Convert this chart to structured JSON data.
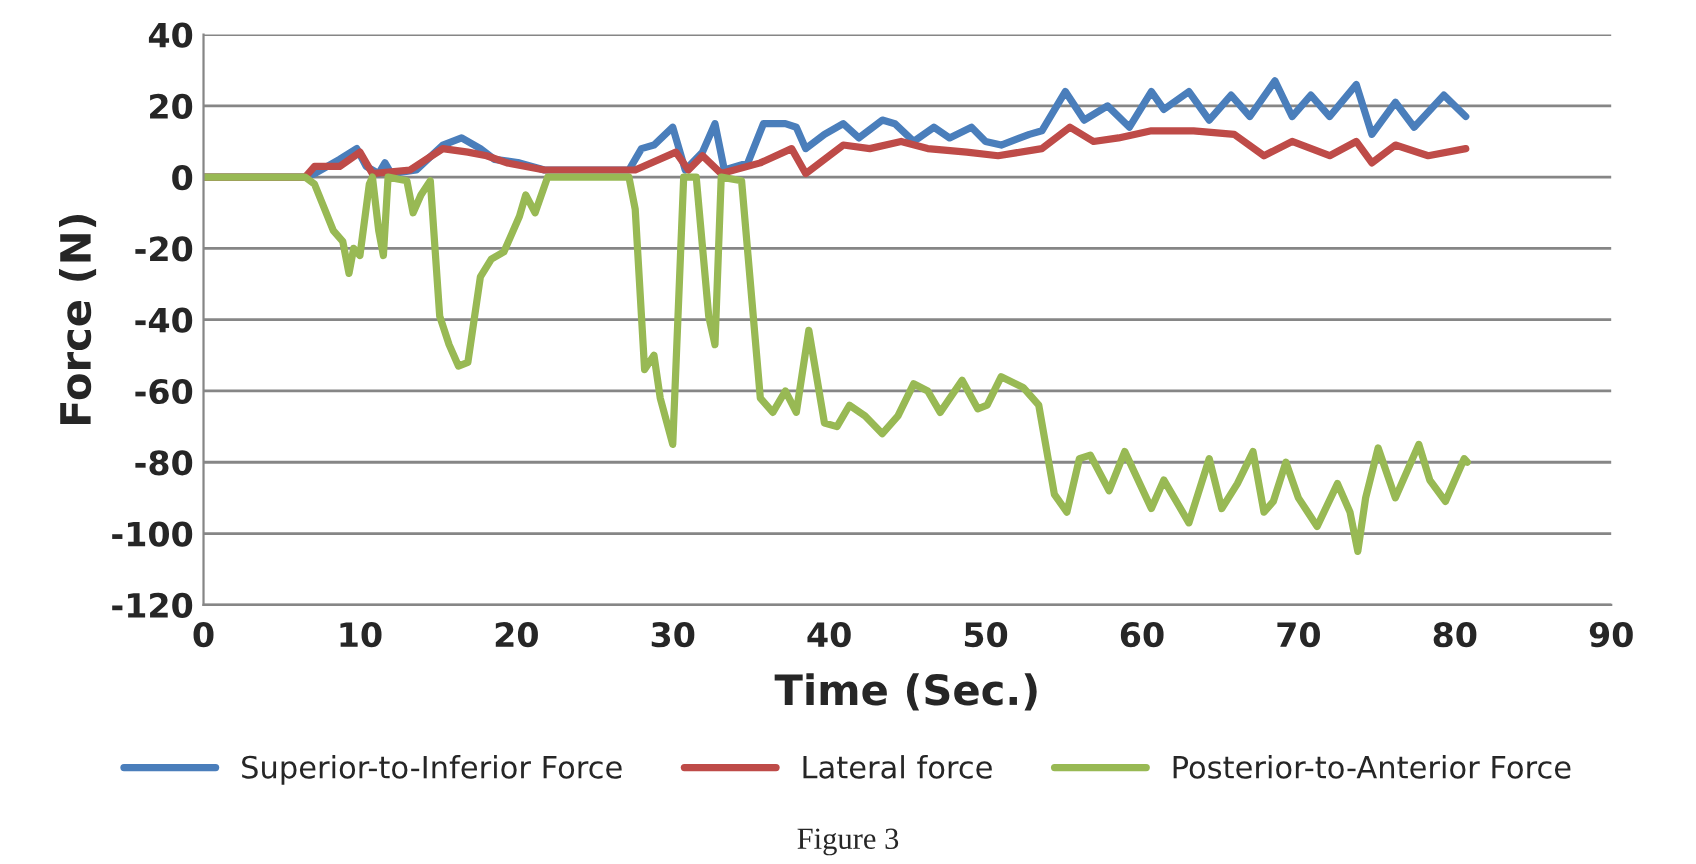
{
  "chart_data": {
    "type": "line",
    "xlabel": "Time (Sec.)",
    "ylabel": "Force (N)",
    "xlim": [
      0,
      90
    ],
    "xticks": [
      0,
      10,
      20,
      30,
      40,
      50,
      60,
      70,
      80,
      90
    ],
    "ylim": [
      -120,
      40
    ],
    "yticks": [
      -120,
      -100,
      -80,
      -60,
      -40,
      -20,
      0,
      20,
      40
    ],
    "grid": "y",
    "legend": "bottom",
    "marker": "none",
    "line_style": "solid",
    "annotations": [
      "Figure 3"
    ],
    "series": [
      {
        "name": "Superior-to-Inferior Force",
        "color": "#4a7ebb",
        "x": [
          0,
          6.5,
          7.1,
          8.7,
          9.8,
          10.4,
          11.2,
          11.6,
          12,
          13.6,
          15.3,
          16.5,
          17.7,
          18.6,
          20.2,
          21.8,
          27.2,
          28,
          28.8,
          30,
          30.8,
          31.9,
          32.7,
          33.3,
          34.8,
          35.8,
          37.2,
          37.9,
          38.5,
          39.7,
          40.9,
          41.9,
          43.4,
          44.2,
          45.4,
          46.7,
          47.7,
          49.1,
          50,
          51,
          52.8,
          53.6,
          55.1,
          56.3,
          57.8,
          59.2,
          60.6,
          61.4,
          63,
          64.3,
          65.7,
          66.9,
          68.5,
          69.6,
          70.8,
          72,
          73.7,
          74.7,
          76.2,
          77.4,
          79.3,
          80.7
        ],
        "values": [
          0,
          0,
          1,
          5,
          8,
          3,
          1,
          4,
          1,
          2,
          9,
          11,
          8,
          5,
          4,
          2,
          2,
          8,
          9,
          14,
          2,
          7,
          15,
          2,
          4,
          15,
          15,
          14,
          8,
          12,
          15,
          11,
          16,
          15,
          10,
          14,
          11,
          14,
          10,
          9,
          12,
          13,
          24,
          16,
          20,
          14,
          24,
          19,
          24,
          16,
          23,
          17,
          27,
          17,
          23,
          17,
          26,
          12,
          21,
          14,
          23,
          17
        ]
      },
      {
        "name": "Lateral force",
        "color": "#be4b48",
        "x": [
          0,
          6.5,
          7.1,
          8.7,
          10,
          10.8,
          13.2,
          15.3,
          16.9,
          18.1,
          19.4,
          21.8,
          27.6,
          30.2,
          31,
          31.9,
          33.1,
          35.6,
          37.6,
          38.5,
          40.9,
          42.6,
          44.6,
          46.3,
          48.8,
          50.8,
          53.6,
          55.4,
          56.9,
          58.5,
          60.6,
          63.3,
          65.9,
          67.8,
          69.6,
          72,
          73.7,
          74.7,
          76.2,
          78.3,
          80.7
        ],
        "values": [
          0,
          0,
          3,
          3,
          7,
          1,
          2,
          8,
          7,
          6,
          4,
          2,
          2,
          7,
          2,
          6,
          1,
          4,
          8,
          1,
          9,
          8,
          10,
          8,
          7,
          6,
          8,
          14,
          10,
          11,
          13,
          13,
          12,
          6,
          10,
          6,
          10,
          4,
          9,
          6,
          8
        ]
      },
      {
        "name": "Posterior-to-Anterior Force",
        "color": "#98b954",
        "x": [
          0,
          6.5,
          7.1,
          8.3,
          8.9,
          9.3,
          9.6,
          10,
          10.6,
          10.8,
          11.2,
          11.5,
          11.8,
          13,
          13.4,
          13.9,
          14.5,
          15.1,
          15.7,
          16.3,
          16.9,
          17.7,
          18.4,
          19.2,
          20.2,
          20.6,
          21.2,
          22,
          27.2,
          27.6,
          28.2,
          28.8,
          29.2,
          30,
          30.7,
          31.5,
          32.3,
          32.7,
          33.1,
          34.4,
          35.6,
          36.4,
          37.2,
          37.9,
          38.7,
          39.7,
          40.5,
          41.3,
          42.3,
          43.4,
          44.4,
          45.4,
          46.3,
          47.1,
          48.5,
          49.5,
          50.1,
          51,
          52.4,
          53.4,
          54.4,
          55.2,
          56,
          56.7,
          57.9,
          58.9,
          60.6,
          61.4,
          63,
          64.3,
          65.1,
          66.1,
          67.1,
          67.8,
          68.4,
          69.2,
          70,
          71.2,
          72.5,
          73.3,
          73.8,
          74.3,
          75.1,
          76.2,
          77.7,
          78.4,
          79.4,
          80.6,
          80.8
        ],
        "values": [
          0,
          0,
          -2,
          -15,
          -18,
          -27,
          -20,
          -22,
          -2,
          0,
          -15,
          -22,
          0,
          -1,
          -10,
          -5,
          -1,
          -39,
          -47,
          -53,
          -52,
          -28,
          -23,
          -21,
          -11,
          -5,
          -10,
          0,
          0,
          -9,
          -54,
          -50,
          -62,
          -75,
          0,
          0,
          -39,
          -47,
          0,
          -1,
          -62,
          -66,
          -60,
          -66,
          -43,
          -69,
          -70,
          -64,
          -67,
          -72,
          -67,
          -58,
          -60,
          -66,
          -57,
          -65,
          -64,
          -56,
          -59,
          -64,
          -89,
          -94,
          -79,
          -78,
          -88,
          -77,
          -93,
          -85,
          -97,
          -79,
          -93,
          -86,
          -77,
          -94,
          -91,
          -80,
          -90,
          -98,
          -86,
          -94,
          -105,
          -90,
          -76,
          -90,
          -75,
          -85,
          -91,
          -79,
          -80
        ]
      }
    ]
  }
}
